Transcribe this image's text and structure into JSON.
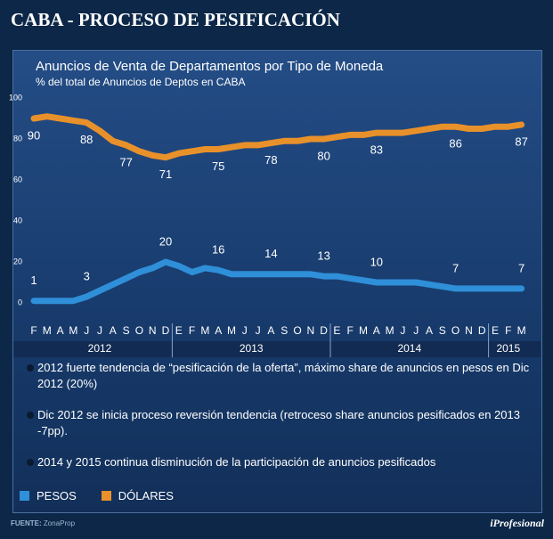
{
  "header": {
    "title": "CABA - PROCESO DE PESIFICACIÓN"
  },
  "chart_data": {
    "type": "line",
    "title": "Anuncios de Venta de Departamentos por Tipo de Moneda",
    "subtitle": "% del total de Anuncios de Deptos en CABA",
    "categories": [
      "F",
      "M",
      "A",
      "M",
      "J",
      "J",
      "A",
      "S",
      "O",
      "N",
      "D",
      "E",
      "F",
      "M",
      "A",
      "M",
      "J",
      "J",
      "A",
      "S",
      "O",
      "N",
      "D",
      "E",
      "F",
      "M",
      "A",
      "M",
      "J",
      "J",
      "A",
      "S",
      "O",
      "N",
      "D",
      "E",
      "F",
      "M"
    ],
    "year_groups": [
      {
        "label": "2012",
        "months": 11
      },
      {
        "label": "2013",
        "months": 12
      },
      {
        "label": "2014",
        "months": 12
      },
      {
        "label": "2015",
        "months": 3
      }
    ],
    "series": [
      {
        "name": "PESOS",
        "color": "#2f8fd8",
        "values": [
          1,
          1,
          1,
          1,
          3,
          6,
          9,
          12,
          15,
          17,
          20,
          18,
          15,
          17,
          16,
          14,
          14,
          14,
          14,
          14,
          14,
          14,
          13,
          13,
          12,
          11,
          10,
          10,
          10,
          10,
          9,
          8,
          7,
          7,
          7,
          7,
          7,
          7
        ],
        "value_labels": [
          1,
          null,
          null,
          null,
          3,
          null,
          null,
          null,
          null,
          null,
          20,
          null,
          null,
          null,
          16,
          null,
          null,
          null,
          14,
          null,
          null,
          null,
          13,
          null,
          null,
          null,
          10,
          null,
          null,
          null,
          null,
          null,
          7,
          null,
          null,
          null,
          null,
          7
        ]
      },
      {
        "name": "DÓLARES",
        "color": "#e8912a",
        "values": [
          90,
          91,
          90,
          89,
          88,
          84,
          79,
          77,
          74,
          72,
          71,
          73,
          74,
          75,
          75,
          76,
          77,
          77,
          78,
          79,
          79,
          80,
          80,
          81,
          82,
          82,
          83,
          83,
          83,
          84,
          85,
          86,
          86,
          85,
          85,
          86,
          86,
          87
        ],
        "value_labels": [
          90,
          null,
          null,
          null,
          88,
          null,
          null,
          77,
          null,
          null,
          71,
          null,
          null,
          null,
          75,
          null,
          null,
          null,
          78,
          null,
          null,
          null,
          80,
          null,
          null,
          null,
          83,
          null,
          null,
          null,
          null,
          null,
          86,
          null,
          null,
          null,
          null,
          87
        ]
      }
    ],
    "ylim": [
      -8,
      100
    ],
    "yticks": [
      0,
      20,
      40,
      60,
      80,
      100
    ],
    "grid": false
  },
  "bullets": [
    "2012 fuerte tendencia de “pesificación de la oferta”, máximo share de anuncios en pesos en Dic 2012 (20%)",
    "Dic 2012 se inicia proceso reversión tendencia (retroceso share anuncios pesificados en 2013 -7pp).",
    "2014 y 2015 continua disminución de la participación de anuncios pesificados"
  ],
  "footer": {
    "source_label": "FUENTE:",
    "source": "ZonaProp",
    "logo": "iProfesional"
  }
}
